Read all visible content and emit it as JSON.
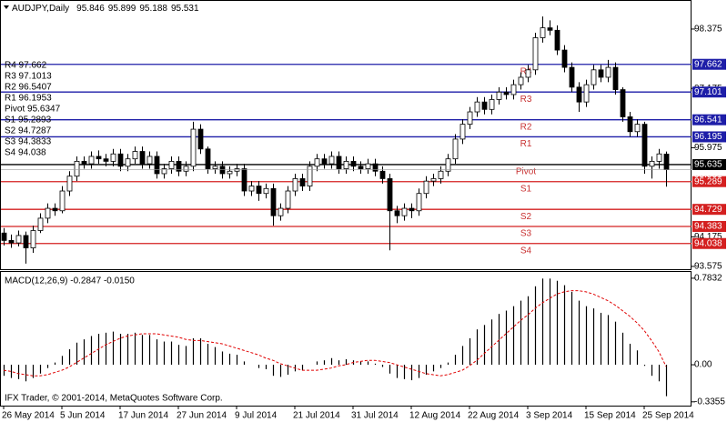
{
  "chart_data": {
    "type": "candlestick",
    "symbol": "AUDJPY,Daily",
    "categories": [
      "26 May 2014",
      null,
      null,
      null,
      null,
      null,
      null,
      null,
      "5 Jun 2014",
      null,
      null,
      null,
      null,
      null,
      null,
      null,
      "17 Jun 2014",
      null,
      null,
      null,
      null,
      null,
      null,
      null,
      "27 Jun 2014",
      null,
      null,
      null,
      null,
      null,
      null,
      null,
      "9 Jul 2014",
      null,
      null,
      null,
      null,
      null,
      null,
      null,
      "21 Jul 2014",
      null,
      null,
      null,
      null,
      null,
      null,
      null,
      "31 Jul 2014",
      null,
      null,
      null,
      null,
      null,
      null,
      null,
      "12 Aug 2014",
      null,
      null,
      null,
      null,
      null,
      null,
      null,
      "22 Aug 2014",
      null,
      null,
      null,
      null,
      null,
      null,
      null,
      "3 Sep 2014",
      null,
      null,
      null,
      null,
      null,
      null,
      null,
      "15 Sep 2014",
      null,
      null,
      null,
      null,
      null,
      null,
      null,
      "25 Sep 2014",
      null,
      null,
      null
    ],
    "candles": {
      "open": [
        94.25,
        94.1,
        94.05,
        94.2,
        93.95,
        94.3,
        94.55,
        94.75,
        94.7,
        95.1,
        95.4,
        95.7,
        95.65,
        95.8,
        95.75,
        95.7,
        95.85,
        95.6,
        95.75,
        95.9,
        95.65,
        95.8,
        95.45,
        95.55,
        95.7,
        95.5,
        95.6,
        96.35,
        95.95,
        95.55,
        95.6,
        95.45,
        95.5,
        95.55,
        95.1,
        95.2,
        95.05,
        95.15,
        94.6,
        94.75,
        95.1,
        95.35,
        95.2,
        95.6,
        95.75,
        95.65,
        95.8,
        95.55,
        95.7,
        95.6,
        95.55,
        95.65,
        95.5,
        95.35,
        94.7,
        94.6,
        94.75,
        94.7,
        95.05,
        95.3,
        95.35,
        95.5,
        95.75,
        96.15,
        96.45,
        96.7,
        96.9,
        96.75,
        96.95,
        97.1,
        97.05,
        97.25,
        97.4,
        97.55,
        98.2,
        98.4,
        98.35,
        97.95,
        97.6,
        97.2,
        96.9,
        97.25,
        97.55,
        97.4,
        97.6,
        97.15,
        96.6,
        96.3,
        96.45,
        95.6,
        95.7,
        95.846
      ],
      "high": [
        94.35,
        94.22,
        94.3,
        94.28,
        94.4,
        94.65,
        94.85,
        94.85,
        95.2,
        95.5,
        95.8,
        95.8,
        95.9,
        95.92,
        95.85,
        95.95,
        95.95,
        95.85,
        96.0,
        96.0,
        95.9,
        95.9,
        95.65,
        95.8,
        95.8,
        95.7,
        96.5,
        96.45,
        96.0,
        95.7,
        95.7,
        95.6,
        95.65,
        95.65,
        95.3,
        95.3,
        95.25,
        95.25,
        94.85,
        95.2,
        95.45,
        95.45,
        95.7,
        95.85,
        95.85,
        95.9,
        95.9,
        95.8,
        95.8,
        95.7,
        95.75,
        95.75,
        95.6,
        95.45,
        94.8,
        94.85,
        94.85,
        95.15,
        95.4,
        95.45,
        95.6,
        95.85,
        96.25,
        96.55,
        96.8,
        97.0,
        97.0,
        97.05,
        97.2,
        97.2,
        97.35,
        97.5,
        97.65,
        98.3,
        98.63,
        98.55,
        98.45,
        98.05,
        97.7,
        97.3,
        97.35,
        97.65,
        97.65,
        97.75,
        97.7,
        97.2,
        96.7,
        96.55,
        96.5,
        95.8,
        95.95,
        95.899
      ],
      "low": [
        94.0,
        93.95,
        93.98,
        93.63,
        93.85,
        94.25,
        94.45,
        94.6,
        94.65,
        95.0,
        95.3,
        95.55,
        95.55,
        95.65,
        95.6,
        95.6,
        95.5,
        95.5,
        95.65,
        95.55,
        95.55,
        95.35,
        95.35,
        95.45,
        95.4,
        95.4,
        95.5,
        95.85,
        95.45,
        95.45,
        95.35,
        95.35,
        95.4,
        95.0,
        95.0,
        94.9,
        94.95,
        94.4,
        94.5,
        94.65,
        95.0,
        95.1,
        95.1,
        95.5,
        95.55,
        95.55,
        95.45,
        95.45,
        95.5,
        95.45,
        95.45,
        95.4,
        95.25,
        93.9,
        94.45,
        94.5,
        94.55,
        94.6,
        94.95,
        95.2,
        95.25,
        95.4,
        95.65,
        96.05,
        96.35,
        96.6,
        96.65,
        96.65,
        96.85,
        96.95,
        96.95,
        97.15,
        97.3,
        97.45,
        98.1,
        98.25,
        97.85,
        97.5,
        97.1,
        96.7,
        96.8,
        97.15,
        97.3,
        97.3,
        97.05,
        96.5,
        96.2,
        96.2,
        95.45,
        95.35,
        95.55,
        95.188
      ],
      "close": [
        94.1,
        94.05,
        94.2,
        93.95,
        94.3,
        94.55,
        94.75,
        94.7,
        95.1,
        95.4,
        95.7,
        95.65,
        95.8,
        95.75,
        95.7,
        95.85,
        95.6,
        95.75,
        95.9,
        95.65,
        95.8,
        95.45,
        95.55,
        95.7,
        95.5,
        95.6,
        96.35,
        95.95,
        95.55,
        95.6,
        95.45,
        95.5,
        95.55,
        95.1,
        95.2,
        95.05,
        95.15,
        94.6,
        94.75,
        95.1,
        95.35,
        95.2,
        95.6,
        95.75,
        95.65,
        95.8,
        95.55,
        95.7,
        95.6,
        95.55,
        95.65,
        95.5,
        95.35,
        94.7,
        94.6,
        94.75,
        94.7,
        95.05,
        95.3,
        95.35,
        95.5,
        95.75,
        96.15,
        96.45,
        96.7,
        96.9,
        96.75,
        96.95,
        97.1,
        97.05,
        97.25,
        97.4,
        97.55,
        98.2,
        98.4,
        98.35,
        97.95,
        97.6,
        97.2,
        96.9,
        97.25,
        97.55,
        97.4,
        97.6,
        97.15,
        96.6,
        96.3,
        96.45,
        95.6,
        95.7,
        95.85,
        95.531
      ]
    },
    "ylim": [
      93.5,
      98.65
    ],
    "yticks": [
      98.375,
      97.175,
      95.975,
      94.175,
      93.575
    ],
    "levels": [
      {
        "name": "R4",
        "legend": "R4 97.662",
        "value": 97.662,
        "color": "#1e1ea8"
      },
      {
        "name": "R3",
        "legend": "R3 97.1013",
        "value": 97.1013,
        "label": "97.101",
        "color": "#1e1ea8"
      },
      {
        "name": "R2",
        "legend": "R2 96.5407",
        "value": 96.5407,
        "label": "96.541",
        "color": "#1e1ea8"
      },
      {
        "name": "R1",
        "legend": "R1 96.1953",
        "value": 96.1953,
        "label": "96.195",
        "color": "#1e1ea8"
      },
      {
        "name": "Pivot",
        "legend": "Pivot 95.6347",
        "value": 95.6347,
        "label": "95.635",
        "color": "#000000"
      },
      {
        "name": "S1",
        "legend": "S1 95.2893",
        "value": 95.2893,
        "label": "95.289",
        "color": "#d42020"
      },
      {
        "name": "S2",
        "legend": "S2 94.7287",
        "value": 94.7287,
        "label": "94.729",
        "color": "#d42020"
      },
      {
        "name": "S3",
        "legend": "S3 94.3833",
        "value": 94.3833,
        "label": "94.383",
        "color": "#d42020"
      },
      {
        "name": "S4",
        "legend": "S4 94.038",
        "value": 94.038,
        "color": "#d42020"
      }
    ],
    "macd": {
      "title": "MACD(12,26,9) -0.2847 -0.0150",
      "ylim": [
        -0.37,
        0.84
      ],
      "yticks": [
        0.7832,
        {
          "value": 0,
          "label": "0.00"
        },
        -0.3355
      ],
      "histogram": [
        -0.1,
        -0.12,
        -0.13,
        -0.15,
        -0.12,
        -0.08,
        -0.03,
        0.02,
        0.08,
        0.14,
        0.2,
        0.23,
        0.26,
        0.28,
        0.29,
        0.3,
        0.28,
        0.28,
        0.29,
        0.27,
        0.27,
        0.23,
        0.21,
        0.21,
        0.18,
        0.17,
        0.24,
        0.24,
        0.19,
        0.16,
        0.12,
        0.1,
        0.09,
        0.03,
        0.0,
        -0.03,
        -0.04,
        -0.1,
        -0.11,
        -0.09,
        -0.06,
        -0.05,
        0.0,
        0.03,
        0.04,
        0.06,
        0.04,
        0.05,
        0.04,
        0.03,
        0.03,
        0.01,
        -0.02,
        -0.08,
        -0.12,
        -0.13,
        -0.14,
        -0.12,
        -0.09,
        -0.06,
        -0.03,
        0.02,
        0.09,
        0.17,
        0.24,
        0.32,
        0.36,
        0.41,
        0.46,
        0.49,
        0.53,
        0.58,
        0.62,
        0.71,
        0.78,
        0.78,
        0.76,
        0.72,
        0.66,
        0.58,
        0.53,
        0.51,
        0.47,
        0.45,
        0.39,
        0.29,
        0.19,
        0.13,
        -0.01,
        -0.1,
        -0.15,
        -0.2847
      ],
      "signal": [
        -0.05,
        -0.06,
        -0.08,
        -0.09,
        -0.1,
        -0.1,
        -0.09,
        -0.07,
        -0.05,
        -0.02,
        0.02,
        0.06,
        0.1,
        0.14,
        0.18,
        0.21,
        0.24,
        0.26,
        0.27,
        0.28,
        0.28,
        0.28,
        0.27,
        0.26,
        0.25,
        0.23,
        0.22,
        0.22,
        0.21,
        0.2,
        0.19,
        0.17,
        0.15,
        0.13,
        0.11,
        0.09,
        0.06,
        0.04,
        0.01,
        -0.01,
        -0.03,
        -0.05,
        -0.05,
        -0.05,
        -0.04,
        -0.03,
        -0.01,
        0.0,
        0.02,
        0.03,
        0.04,
        0.04,
        0.03,
        0.02,
        0.0,
        -0.02,
        -0.04,
        -0.06,
        -0.08,
        -0.09,
        -0.1,
        -0.09,
        -0.07,
        -0.05,
        -0.01,
        0.04,
        0.1,
        0.16,
        0.22,
        0.28,
        0.34,
        0.4,
        0.45,
        0.51,
        0.56,
        0.6,
        0.64,
        0.66,
        0.67,
        0.67,
        0.66,
        0.64,
        0.61,
        0.58,
        0.54,
        0.49,
        0.44,
        0.38,
        0.31,
        0.22,
        0.12,
        -0.015
      ],
      "signal_color": "#e00000"
    },
    "footer": "IFX Trader, © 2001-2014, MetaQuotes Software Corp."
  }
}
